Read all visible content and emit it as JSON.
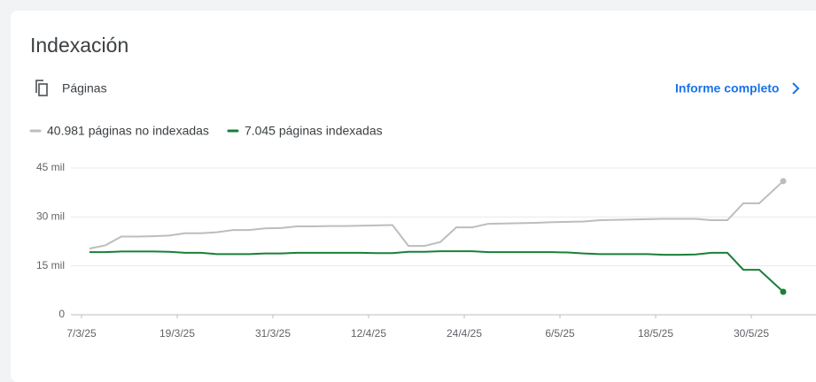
{
  "header": {
    "section": "Páginas",
    "link": "Informe completo"
  },
  "chart_data": {
    "type": "line",
    "title": "Indexación",
    "x": [
      "2025-03-08",
      "2025-03-10",
      "2025-03-12",
      "2025-03-14",
      "2025-03-16",
      "2025-03-18",
      "2025-03-20",
      "2025-03-22",
      "2025-03-24",
      "2025-03-26",
      "2025-03-28",
      "2025-03-30",
      "2025-04-01",
      "2025-04-03",
      "2025-04-05",
      "2025-04-07",
      "2025-04-09",
      "2025-04-11",
      "2025-04-13",
      "2025-04-15",
      "2025-04-17",
      "2025-04-19",
      "2025-04-21",
      "2025-04-23",
      "2025-04-25",
      "2025-04-27",
      "2025-04-29",
      "2025-05-01",
      "2025-05-03",
      "2025-05-05",
      "2025-05-07",
      "2025-05-09",
      "2025-05-11",
      "2025-05-13",
      "2025-05-15",
      "2025-05-17",
      "2025-05-19",
      "2025-05-21",
      "2025-05-23",
      "2025-05-25",
      "2025-05-27",
      "2025-05-29",
      "2025-05-31",
      "2025-06-03"
    ],
    "series": [
      {
        "name": "40.981 páginas no indexadas",
        "color": "#bdbdbd",
        "values": [
          20300,
          21300,
          24000,
          24000,
          24100,
          24300,
          25000,
          25000,
          25300,
          26000,
          26000,
          26500,
          26600,
          27100,
          27100,
          27200,
          27200,
          27300,
          27400,
          27500,
          21100,
          21100,
          22300,
          26800,
          26800,
          27900,
          28000,
          28100,
          28200,
          28400,
          28500,
          28600,
          29000,
          29100,
          29200,
          29300,
          29400,
          29400,
          29400,
          29000,
          29000,
          34200,
          34200,
          40981
        ]
      },
      {
        "name": "7.045 páginas indexadas",
        "color": "#188038",
        "values": [
          19200,
          19200,
          19400,
          19400,
          19400,
          19300,
          19000,
          19000,
          18600,
          18600,
          18600,
          18800,
          18800,
          19000,
          19000,
          19000,
          19000,
          19000,
          18900,
          18900,
          19300,
          19300,
          19500,
          19500,
          19500,
          19200,
          19200,
          19200,
          19200,
          19200,
          19100,
          18800,
          18600,
          18600,
          18600,
          18600,
          18400,
          18400,
          18500,
          19000,
          19000,
          13800,
          13800,
          7045
        ]
      }
    ],
    "xlim": [
      "2025-03-06",
      "2025-06-05"
    ],
    "xticks": [
      {
        "value": "2025-03-07",
        "label": "7/3/25"
      },
      {
        "value": "2025-03-19",
        "label": "19/3/25"
      },
      {
        "value": "2025-03-31",
        "label": "31/3/25"
      },
      {
        "value": "2025-04-12",
        "label": "12/4/25"
      },
      {
        "value": "2025-04-24",
        "label": "24/4/25"
      },
      {
        "value": "2025-05-06",
        "label": "6/5/25"
      },
      {
        "value": "2025-05-18",
        "label": "18/5/25"
      },
      {
        "value": "2025-05-30",
        "label": "30/5/25"
      }
    ],
    "ylim": [
      0,
      45000
    ],
    "yticks": [
      0,
      {
        "value": 15000,
        "label": "15 mil"
      },
      {
        "value": 30000,
        "label": "30 mil"
      },
      {
        "value": 45000,
        "label": "45 mil"
      }
    ],
    "grid": true
  }
}
